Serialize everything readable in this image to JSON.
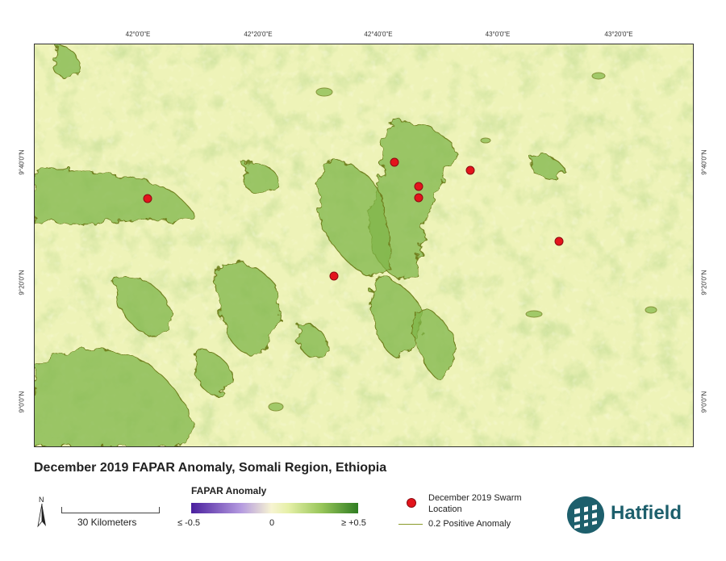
{
  "map": {
    "title": "December 2019 FAPAR Anomaly, Somali Region, Ethiopia",
    "top_ticks": [
      "42°0'0\"E",
      "42°20'0\"E",
      "42°40'0\"E",
      "43°0'0\"E",
      "43°20'0\"E"
    ],
    "left_ticks": [
      "9°40'0\"N",
      "9°20'0\"N",
      "9°0'0\"N"
    ],
    "right_ticks": [
      "9°40'0\"N",
      "9°20'0\"N",
      "9°0'0\"N"
    ],
    "swarm_color": "#e3141c",
    "anomaly_line_color": "#8a9a2a"
  },
  "north_arrow": {
    "label": "N"
  },
  "scale": {
    "label": "30 Kilometers"
  },
  "legend": {
    "title": "FAPAR Anomaly",
    "min_label": "≤ -0.5",
    "mid_label": "0",
    "max_label": "≥ +0.5",
    "ramp_colors": [
      "#4a1f9e",
      "#f7f4d2",
      "#2f7d22"
    ],
    "swarm_label": "December 2019 Swarm Location",
    "anomaly_label": "0.2 Positive Anomaly"
  },
  "logo": {
    "text": "Hatfield"
  }
}
